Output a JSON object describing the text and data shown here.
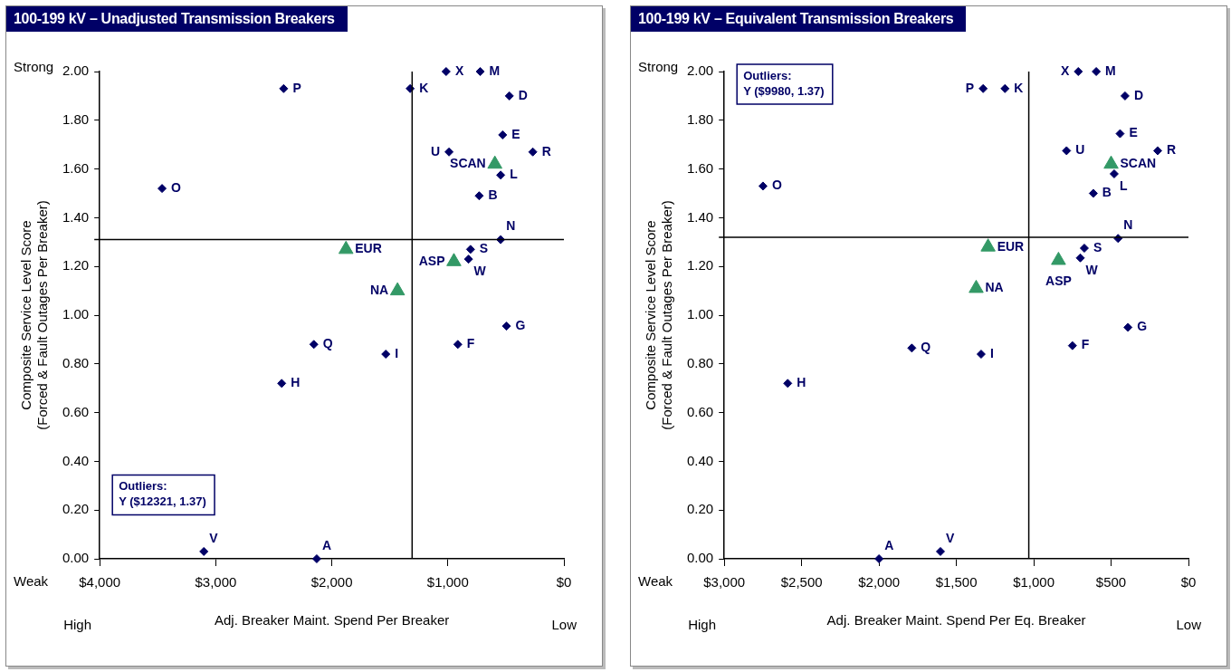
{
  "chart_data": [
    {
      "type": "scatter",
      "title": "100-199 kV – Unadjusted Transmission Breakers",
      "xlabel": "Adj. Breaker Maint. Spend Per Breaker",
      "ylabel": "Composite Service Level Score (Forced & Fault Outages Per Breaker)",
      "xlim": [
        4000,
        0
      ],
      "xticks": [
        {
          "value": 4000,
          "label": "$4,000"
        },
        {
          "value": 3000,
          "label": "$3,000"
        },
        {
          "value": 2000,
          "label": "$2,000"
        },
        {
          "value": 1000,
          "label": "$1,000"
        },
        {
          "value": 0,
          "label": "$0"
        }
      ],
      "ylim": [
        0,
        2
      ],
      "yticks": [
        {
          "value": 0,
          "label": "0.00"
        },
        {
          "value": 0.2,
          "label": "0.20"
        },
        {
          "value": 0.4,
          "label": "0.40"
        },
        {
          "value": 0.6,
          "label": "0.60"
        },
        {
          "value": 0.8,
          "label": "0.80"
        },
        {
          "value": 1,
          "label": "1.00"
        },
        {
          "value": 1.2,
          "label": "1.20"
        },
        {
          "value": 1.4,
          "label": "1.40"
        },
        {
          "value": 1.6,
          "label": "1.60"
        },
        {
          "value": 1.8,
          "label": "1.80"
        },
        {
          "value": 2,
          "label": "2.00"
        }
      ],
      "series": [
        {
          "color": "#000066",
          "marker": "diamond",
          "x": [
            2130,
            2415,
            1325,
            1015,
            721,
            470,
            528,
            990,
            268,
            545,
            730,
            3463,
            545,
            805,
            822,
            495,
            914,
            2155,
            1535,
            2432,
            3103
          ],
          "values": [
            0,
            1.93,
            1.93,
            2.0,
            2.0,
            1.9,
            1.74,
            1.67,
            1.67,
            1.575,
            1.49,
            1.52,
            1.31,
            1.27,
            1.23,
            0.955,
            0.88,
            0.88,
            0.84,
            0.72,
            0.03
          ]
        },
        {
          "color": "#339966",
          "marker": "triangle",
          "x": [
            595,
            1878,
            948,
            1434
          ],
          "values": [
            1.62,
            1.27,
            1.22,
            1.1
          ]
        }
      ],
      "ref_lines": [
        {
          "axis": "x",
          "value": 1308,
          "color": "#000000"
        },
        {
          "axis": "y",
          "value": 1.31,
          "color": "#000000"
        }
      ],
      "annotations": [
        "Strong",
        "Weak",
        "High",
        "Low",
        "Outliers:\nY ($12321, 1.37)",
        {
          "text": "SCAN",
          "x": 595,
          "y": 1.62
        },
        {
          "text": "EUR",
          "x": 1878,
          "y": 1.27
        },
        {
          "text": "ASP",
          "x": 948,
          "y": 1.22
        },
        {
          "text": "NA",
          "x": 1434,
          "y": 1.1
        },
        {
          "text": "A",
          "x": 2130,
          "y": 0
        },
        {
          "text": "P",
          "x": 2415,
          "y": 1.93
        },
        {
          "text": "K",
          "x": 1325,
          "y": 1.93
        },
        {
          "text": "X",
          "x": 1015,
          "y": 2.0
        },
        {
          "text": "M",
          "x": 721,
          "y": 2.0
        },
        {
          "text": "D",
          "x": 470,
          "y": 1.9
        },
        {
          "text": "E",
          "x": 528,
          "y": 1.74
        },
        {
          "text": "U",
          "x": 990,
          "y": 1.67
        },
        {
          "text": "R",
          "x": 268,
          "y": 1.67
        },
        {
          "text": "L",
          "x": 545,
          "y": 1.575
        },
        {
          "text": "B",
          "x": 730,
          "y": 1.49
        },
        {
          "text": "O",
          "x": 3463,
          "y": 1.52
        },
        {
          "text": "N",
          "x": 545,
          "y": 1.31
        },
        {
          "text": "S",
          "x": 805,
          "y": 1.27
        },
        {
          "text": "W",
          "x": 822,
          "y": 1.23
        },
        {
          "text": "G",
          "x": 495,
          "y": 0.955
        },
        {
          "text": "F",
          "x": 914,
          "y": 0.88
        },
        {
          "text": "Q",
          "x": 2155,
          "y": 0.88
        },
        {
          "text": "I",
          "x": 1535,
          "y": 0.84
        },
        {
          "text": "H",
          "x": 2432,
          "y": 0.72
        },
        {
          "text": "V",
          "x": 3103,
          "y": 0.03
        }
      ]
    },
    {
      "type": "scatter",
      "title": "100-199 kV – Equivalent Transmission Breakers",
      "xlabel": "Adj. Breaker Maint. Spend Per Eq. Breaker",
      "ylabel": "Composite Service Level Score (Forced & Fault Outages Per Breaker)",
      "xlim": [
        3000,
        0
      ],
      "xticks": [
        {
          "value": 3000,
          "label": "$3,000"
        },
        {
          "value": 2500,
          "label": "$2,500"
        },
        {
          "value": 2000,
          "label": "$2,000"
        },
        {
          "value": 1500,
          "label": "$1,500"
        },
        {
          "value": 1000,
          "label": "$1,000"
        },
        {
          "value": 500,
          "label": "$500"
        },
        {
          "value": 0,
          "label": "$0"
        }
      ],
      "ylim": [
        0,
        2
      ],
      "yticks": [
        {
          "value": 0,
          "label": "0.00"
        },
        {
          "value": 0.2,
          "label": "0.20"
        },
        {
          "value": 0.4,
          "label": "0.40"
        },
        {
          "value": 0.6,
          "label": "0.60"
        },
        {
          "value": 0.8,
          "label": "0.80"
        },
        {
          "value": 1,
          "label": "1.00"
        },
        {
          "value": 1.2,
          "label": "1.20"
        },
        {
          "value": 1.4,
          "label": "1.40"
        },
        {
          "value": 1.6,
          "label": "1.60"
        },
        {
          "value": 1.8,
          "label": "1.80"
        },
        {
          "value": 2,
          "label": "2.00"
        }
      ],
      "series": [
        {
          "color": "#000066",
          "marker": "diamond",
          "x": [
            2000,
            1327,
            1186,
            712,
            596,
            410,
            442,
            788,
            199,
            480,
            615,
            2750,
            455,
            673,
            699,
            391,
            750,
            1788,
            1340,
            2590,
            1603
          ],
          "values": [
            0,
            1.93,
            1.93,
            2.0,
            2.0,
            1.9,
            1.745,
            1.675,
            1.675,
            1.58,
            1.5,
            1.53,
            1.315,
            1.275,
            1.235,
            0.95,
            0.875,
            0.865,
            0.84,
            0.72,
            0.03
          ]
        },
        {
          "color": "#339966",
          "marker": "triangle",
          "x": [
            500,
            1295,
            840,
            1372
          ],
          "values": [
            1.62,
            1.28,
            1.225,
            1.11
          ]
        }
      ],
      "ref_lines": [
        {
          "axis": "x",
          "value": 1032,
          "color": "#000000"
        },
        {
          "axis": "y",
          "value": 1.32,
          "color": "#000000"
        }
      ],
      "annotations": [
        "Strong",
        "Weak",
        "High",
        "Low",
        "Outliers:\nY ($9980, 1.37)",
        {
          "text": "SCAN",
          "x": 500,
          "y": 1.62
        },
        {
          "text": "EUR",
          "x": 1295,
          "y": 1.28
        },
        {
          "text": "ASP",
          "x": 840,
          "y": 1.225
        },
        {
          "text": "NA",
          "x": 1372,
          "y": 1.11
        },
        {
          "text": "A",
          "x": 2000,
          "y": 0
        },
        {
          "text": "P",
          "x": 1327,
          "y": 1.93
        },
        {
          "text": "K",
          "x": 1186,
          "y": 1.93
        },
        {
          "text": "X",
          "x": 712,
          "y": 2.0
        },
        {
          "text": "M",
          "x": 596,
          "y": 2.0
        },
        {
          "text": "D",
          "x": 410,
          "y": 1.9
        },
        {
          "text": "E",
          "x": 442,
          "y": 1.745
        },
        {
          "text": "U",
          "x": 788,
          "y": 1.675
        },
        {
          "text": "R",
          "x": 199,
          "y": 1.675
        },
        {
          "text": "L",
          "x": 480,
          "y": 1.58
        },
        {
          "text": "B",
          "x": 615,
          "y": 1.5
        },
        {
          "text": "O",
          "x": 2750,
          "y": 1.53
        },
        {
          "text": "N",
          "x": 455,
          "y": 1.315
        },
        {
          "text": "S",
          "x": 673,
          "y": 1.275
        },
        {
          "text": "W",
          "x": 699,
          "y": 1.235
        },
        {
          "text": "G",
          "x": 391,
          "y": 0.95
        },
        {
          "text": "F",
          "x": 750,
          "y": 0.875
        },
        {
          "text": "Q",
          "x": 1788,
          "y": 0.865
        },
        {
          "text": "I",
          "x": 1340,
          "y": 0.84
        },
        {
          "text": "H",
          "x": 2590,
          "y": 0.72
        },
        {
          "text": "V",
          "x": 1603,
          "y": 0.03
        }
      ]
    }
  ]
}
